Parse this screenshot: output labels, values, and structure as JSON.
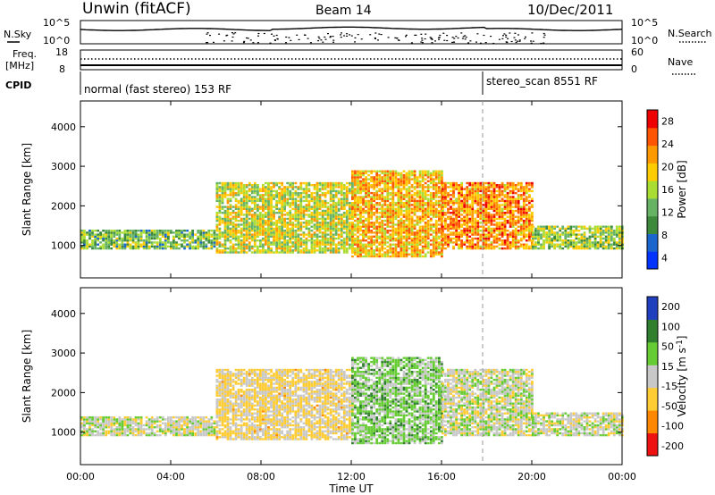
{
  "header": {
    "station": "Unwin (fitACF)",
    "beam": "Beam 14",
    "date": "10/Dec/2011"
  },
  "noise_panel": {
    "left_label": "N.Sky",
    "right_label": "N.Search",
    "left_ticks": [
      "10^5",
      "10^0"
    ],
    "right_ticks": [
      "10^5",
      "10^0"
    ]
  },
  "freq_panel": {
    "left_label_1": "Freq.",
    "left_label_2": "[MHz]",
    "left_ticks": [
      "18",
      "8"
    ],
    "right_label": "Nave",
    "right_ticks": [
      "60",
      "0"
    ]
  },
  "cpid_panel": {
    "label": "CPID",
    "modes": [
      {
        "name": "normal (fast stereo) 153 RF",
        "start": "00:00",
        "end": "18:00"
      },
      {
        "name": "stereo_scan 8551 RF",
        "start": "18:00",
        "end": "24:00"
      }
    ]
  },
  "colors": {
    "power_scale": [
      "#0033ff",
      "#1a66cc",
      "#3d8a3d",
      "#66b366",
      "#aadd33",
      "#ffcc00",
      "#ff9900",
      "#ff5500",
      "#ee0000"
    ],
    "velocity_scale": [
      "#1f3fbf",
      "#2f7f2f",
      "#66cc33",
      "#c8c8c8",
      "#ffcc33",
      "#ff8800",
      "#ee1111"
    ],
    "ground_scatter": "#c8c8c8"
  },
  "chart_data": [
    {
      "type": "heatmap",
      "title": "Power",
      "xlabel": "Time UT",
      "ylabel": "Slant Range [km]",
      "xlim": [
        "00:00",
        "24:00"
      ],
      "ylim": [
        180,
        4650
      ],
      "x_ticks": [
        "00:00",
        "04:00",
        "08:00",
        "12:00",
        "16:00",
        "20:00",
        "00:00"
      ],
      "y_ticks": [
        "1000",
        "2000",
        "3000",
        "4000"
      ],
      "colorbar": {
        "label": "Power [dB]",
        "ticks": [
          "28",
          "24",
          "20",
          "16",
          "12",
          "8",
          "4"
        ],
        "range": [
          0,
          30
        ]
      },
      "bands": [
        {
          "t0": 0,
          "t1": 6,
          "r0": 900,
          "r1": 1400,
          "level": 12
        },
        {
          "t0": 6,
          "t1": 12,
          "r0": 800,
          "r1": 2600,
          "level": 16
        },
        {
          "t0": 12,
          "t1": 16,
          "r0": 700,
          "r1": 2900,
          "level": 20
        },
        {
          "t0": 16,
          "t1": 20,
          "r0": 900,
          "r1": 2600,
          "level": 22
        },
        {
          "t0": 20,
          "t1": 24,
          "r0": 900,
          "r1": 1500,
          "level": 14
        }
      ]
    },
    {
      "type": "heatmap",
      "title": "Velocity",
      "xlabel": "Time UT",
      "ylabel": "Slant Range [km]",
      "xlim": [
        "00:00",
        "24:00"
      ],
      "ylim": [
        180,
        4650
      ],
      "x_ticks": [
        "00:00",
        "04:00",
        "08:00",
        "12:00",
        "16:00",
        "20:00",
        "00:00"
      ],
      "y_ticks": [
        "1000",
        "2000",
        "3000",
        "4000"
      ],
      "colorbar": {
        "label": "Velocity [m s^-1]",
        "ticks": [
          "200",
          "100",
          "50",
          "15",
          "-15",
          "-50",
          "-100",
          "-200"
        ],
        "range": [
          -250,
          250
        ]
      },
      "bands": [
        {
          "t0": 0,
          "t1": 6,
          "r0": 900,
          "r1": 1400,
          "level": 0
        },
        {
          "t0": 6,
          "t1": 12,
          "r0": 800,
          "r1": 2600,
          "level": -40
        },
        {
          "t0": 12,
          "t1": 16,
          "r0": 700,
          "r1": 2900,
          "level": 60
        },
        {
          "t0": 16,
          "t1": 20,
          "r0": 900,
          "r1": 2600,
          "level": 0
        },
        {
          "t0": 20,
          "t1": 24,
          "r0": 900,
          "r1": 1500,
          "level": 0
        }
      ]
    }
  ]
}
